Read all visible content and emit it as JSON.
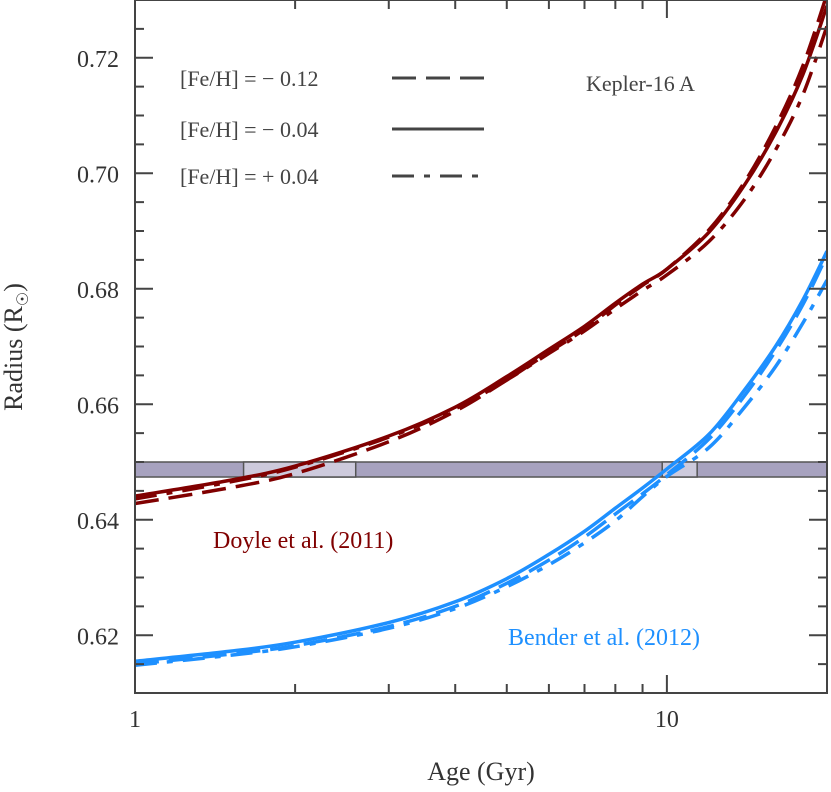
{
  "chart_data": {
    "type": "line",
    "title": "",
    "xlabel": "Age (Gyr)",
    "ylabel": "Radius (R",
    "ylabel_subscript": "☉",
    "ylabel_close": ")",
    "xscale": "log",
    "xlim": [
      1,
      20
    ],
    "ylim": [
      0.61,
      0.73
    ],
    "xticks": [
      {
        "value": 1,
        "label": "1"
      },
      {
        "value": 10,
        "label": "10"
      }
    ],
    "xminor": [
      2,
      3,
      4,
      5,
      6,
      7,
      8,
      9,
      20
    ],
    "yticks": [
      {
        "value": 0.62,
        "label": "0.62"
      },
      {
        "value": 0.64,
        "label": "0.64"
      },
      {
        "value": 0.66,
        "label": "0.66"
      },
      {
        "value": 0.68,
        "label": "0.68"
      },
      {
        "value": 0.7,
        "label": "0.70"
      },
      {
        "value": 0.72,
        "label": "0.72"
      }
    ],
    "yminor_step": 0.005,
    "grid": false,
    "annotation": "Kepler-16 A",
    "legend": {
      "placement": "top-left",
      "entries": [
        {
          "label": "[Fe/H] = − 0.12",
          "style": "dashed"
        },
        {
          "label": "[Fe/H] = − 0.04",
          "style": "solid"
        },
        {
          "label": "[Fe/H] = + 0.04",
          "style": "dashdot"
        }
      ],
      "color": "#444444"
    },
    "band": {
      "ymin": 0.6474,
      "ymax": 0.65,
      "color": "#a7a2bf",
      "highlight_color": "#cdcadc",
      "highlights": [
        [
          1.6,
          2.6
        ],
        [
          9.8,
          11.4
        ]
      ]
    },
    "x": [
      1,
      1.5,
      2,
      3,
      4,
      5,
      6,
      7,
      8,
      9,
      10,
      12,
      14,
      16,
      18,
      20
    ],
    "groups": [
      {
        "label": "Doyle et al. (2011)",
        "color": "#800000",
        "series": [
          {
            "style": "dashed",
            "values": [
              0.6428,
              0.6455,
              0.648,
              0.6535,
              0.6588,
              0.6642,
              0.669,
              0.673,
              0.6772,
              0.6806,
              0.6834,
              0.6902,
              0.6985,
              0.708,
              0.7185,
              0.731
            ]
          },
          {
            "style": "solid",
            "values": [
              0.6441,
              0.6468,
              0.6493,
              0.6545,
              0.6595,
              0.6648,
              0.6695,
              0.6735,
              0.6775,
              0.6808,
              0.6834,
              0.6898,
              0.698,
              0.707,
              0.717,
              0.729
            ]
          },
          {
            "style": "dashdot",
            "values": [
              0.6436,
              0.6465,
              0.6491,
              0.6543,
              0.6592,
              0.6642,
              0.6688,
              0.6727,
              0.6765,
              0.6797,
              0.6824,
              0.6882,
              0.6955,
              0.704,
              0.7135,
              0.7255
            ]
          }
        ]
      },
      {
        "label": "Bender et al. (2012)",
        "color": "#1e90ff",
        "series": [
          {
            "style": "dashed",
            "values": [
              0.615,
              0.6167,
              0.6182,
              0.6215,
              0.625,
              0.629,
              0.633,
              0.637,
              0.641,
              0.6445,
              0.6478,
              0.654,
              0.6615,
              0.6692,
              0.6772,
              0.6858
            ]
          },
          {
            "style": "solid",
            "values": [
              0.6155,
              0.6172,
              0.6188,
              0.6222,
              0.6258,
              0.6298,
              0.634,
              0.638,
              0.642,
              0.6455,
              0.6488,
              0.6548,
              0.6625,
              0.67,
              0.678,
              0.6865
            ]
          },
          {
            "style": "dashdot",
            "values": [
              0.6148,
              0.6165,
              0.618,
              0.6212,
              0.6246,
              0.6284,
              0.6322,
              0.636,
              0.6398,
              0.644,
              0.6475,
              0.6525,
              0.6595,
              0.6665,
              0.674,
              0.6815
            ]
          }
        ]
      }
    ]
  }
}
